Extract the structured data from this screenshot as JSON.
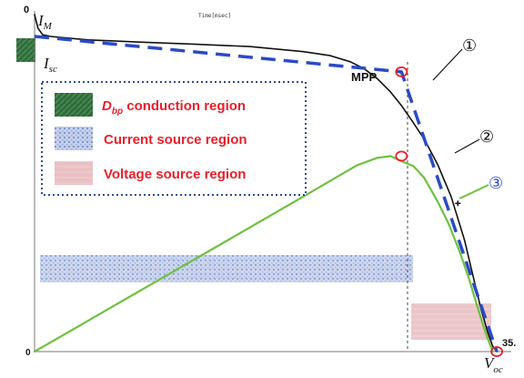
{
  "chart_data": {
    "type": "line",
    "xlim": [
      0,
      35
    ],
    "ylim": [
      0,
      1
    ],
    "tick_labels": {
      "x_end": "35.",
      "y_top": "0"
    },
    "top_label": "Time[msec]",
    "grid": false,
    "series": [
      {
        "marker": "①",
        "color": "#111111",
        "style": "solid",
        "x": [
          0,
          0.25,
          0.6,
          1.2,
          2,
          4,
          8,
          12,
          16,
          20,
          22,
          23.5,
          24.5,
          25.5,
          26.5,
          27.3,
          28,
          29,
          30,
          31,
          32,
          32.6,
          33.2,
          33.7,
          34.1,
          34.4
        ],
        "y": [
          1.0,
          0.96,
          0.94,
          0.935,
          0.932,
          0.925,
          0.918,
          0.912,
          0.905,
          0.89,
          0.878,
          0.86,
          0.84,
          0.81,
          0.77,
          0.73,
          0.69,
          0.63,
          0.555,
          0.46,
          0.33,
          0.23,
          0.13,
          0.06,
          0.015,
          0.0
        ]
      },
      {
        "marker": "②",
        "color": "#6ec040",
        "style": "solid",
        "x": [
          0,
          5,
          10,
          15,
          20,
          24,
          25.5,
          26.5,
          27.3,
          28.2,
          29,
          30,
          30.8,
          31.6,
          32.3,
          32.9,
          33.4,
          33.8,
          34.1
        ],
        "y": [
          0.0,
          0.115,
          0.23,
          0.345,
          0.46,
          0.553,
          0.575,
          0.58,
          0.565,
          0.55,
          0.515,
          0.445,
          0.38,
          0.3,
          0.22,
          0.14,
          0.075,
          0.03,
          0.0
        ]
      },
      {
        "marker": "③",
        "color": "#2a4bc4",
        "style": "dashed",
        "x": [
          0,
          27.3,
          34.4
        ],
        "y": [
          0.935,
          0.83,
          0.0
        ]
      }
    ],
    "points": [
      {
        "label": "MPP",
        "x": 27.3,
        "y": 0.83
      },
      {
        "label": "",
        "x": 27.3,
        "y": 0.58
      },
      {
        "label": "",
        "x": 34.4,
        "y": 0.0
      }
    ],
    "annotations": {
      "i_m": {
        "letter": "I",
        "sub": "M"
      },
      "i_sc": {
        "letter": "I",
        "sub": "sc"
      },
      "v_oc": {
        "letter": "V",
        "sub": "oc"
      },
      "origin": "0"
    },
    "regions": [
      {
        "name": "conduction",
        "color": "#2e6b3a"
      },
      {
        "name": "current",
        "color": "#8fa6d6"
      },
      {
        "name": "voltage",
        "color": "#e6b3b8"
      }
    ],
    "legend": {
      "placement": "top-left",
      "entries": [
        {
          "main": "D",
          "sub": "bp",
          "rest": " conduction region",
          "color": "#2e6b3a"
        },
        {
          "main": "",
          "sub": "",
          "rest": "Current source region",
          "color": "#6f89c9"
        },
        {
          "main": "",
          "sub": "",
          "rest": "Voltage source region",
          "color": "#e8b4b8"
        }
      ]
    }
  }
}
